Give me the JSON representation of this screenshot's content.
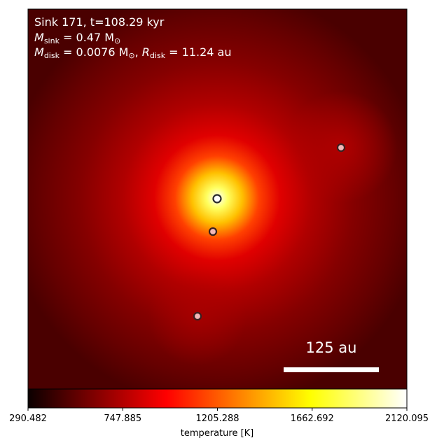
{
  "annotation": {
    "line1": "Sink 171, t=108.29 kyr",
    "line2_symbol": "M",
    "line2_sub": "sink",
    "line2_rest": " = 0.47 M",
    "line2_sun": "⊙",
    "line3_symbol_a": "M",
    "line3_sub_a": "disk",
    "line3_rest_a": " = 0.0076 M",
    "line3_sun": "⊙",
    "line3_sep": ", ",
    "line3_symbol_b": "R",
    "line3_sub_b": "disk",
    "line3_rest_b": " = 11.24 au"
  },
  "scalebar": {
    "label": "125 au"
  },
  "colorbar": {
    "label": "temperature [K]",
    "ticks": [
      "290.482",
      "747.885",
      "1205.288",
      "1662.692",
      "2120.095"
    ],
    "min": 290.482,
    "max": 2120.095,
    "colormap": "hot"
  },
  "sinks": [
    {
      "id": "central",
      "fill": "#ffffff",
      "edge": "#2a2a2a"
    },
    {
      "id": "companion-1",
      "fill": "#f2b8b8",
      "edge": "#3a2020"
    },
    {
      "id": "companion-2",
      "fill": "#f2b8b8",
      "edge": "#3a2020"
    },
    {
      "id": "companion-3",
      "fill": "#f2b8b8",
      "edge": "#3a2020"
    }
  ]
}
